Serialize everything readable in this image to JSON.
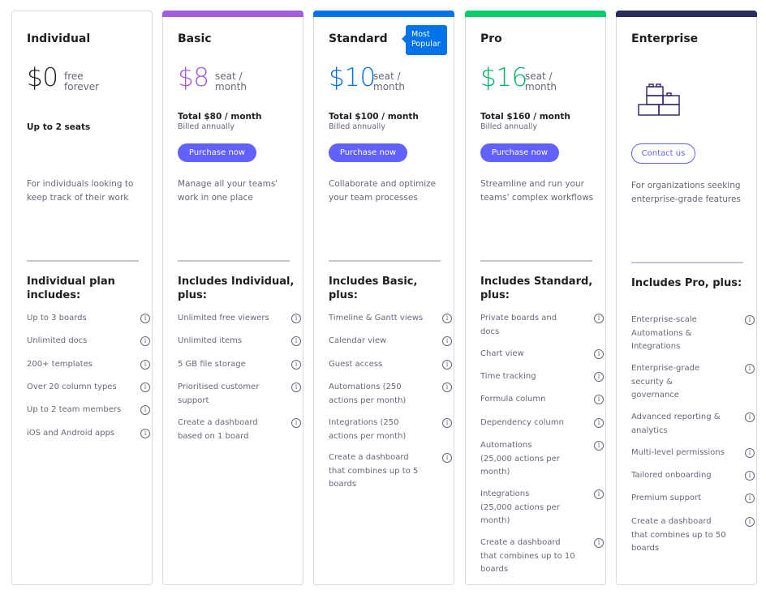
{
  "colors": {
    "basic": "#a25ddc",
    "standard": "#0073ea",
    "pro": "#00b36b",
    "enterprise": "#2b2c5e",
    "button": "#6161ff"
  },
  "plans": [
    {
      "name": "Individual",
      "price": "$0",
      "unit_line1": "free",
      "unit_line2": "forever",
      "seats": "Up to 2 seats",
      "description": "For individuals looking to keep track of their work",
      "includes": "Individual plan includes:",
      "features": [
        "Up to 3 boards",
        "Unlimited docs",
        "200+ templates",
        "Over 20 column types",
        "Up to 2 team members",
        "iOS and Android apps"
      ]
    },
    {
      "name": "Basic",
      "price": "$8",
      "unit_line1": "seat /",
      "unit_line2": "month",
      "total": "Total $80 / month",
      "billed": "Billed annually",
      "button": "Purchase now",
      "description": "Manage all your teams' work in one place",
      "includes": "Includes Individual, plus:",
      "features": [
        "Unlimited free viewers",
        "Unlimited items",
        "5 GB file storage",
        "Prioritised customer support",
        "Create a dashboard based on 1 board"
      ]
    },
    {
      "name": "Standard",
      "badge_line1": "Most",
      "badge_line2": "Popular",
      "price": "$10",
      "unit_line1": "seat /",
      "unit_line2": "month",
      "total": "Total $100 / month",
      "billed": "Billed annually",
      "button": "Purchase now",
      "description": "Collaborate and optimize your team processes",
      "includes": "Includes Basic, plus:",
      "features": [
        "Timeline & Gantt views",
        "Calendar view",
        "Guest access",
        "Automations (250 actions per month)",
        "Integrations (250 actions per month)",
        "Create a dashboard that combines up to 5 boards"
      ]
    },
    {
      "name": "Pro",
      "price": "$16",
      "unit_line1": "seat /",
      "unit_line2": "month",
      "total": "Total $160 / month",
      "billed": "Billed annually",
      "button": "Purchase now",
      "description": "Streamline and run your teams' complex workflows",
      "includes": "Includes Standard, plus:",
      "features": [
        "Private boards and docs",
        "Chart view",
        "Time tracking",
        "Formula column",
        "Dependency column",
        "Automations (25,000 actions per month)",
        "Integrations (25,000 actions per month)",
        "Create a dashboard that combines up to 10 boards"
      ]
    },
    {
      "name": "Enterprise",
      "icon": "building-blocks-icon",
      "button": "Contact us",
      "description": "For organizations seeking enterprise-grade features",
      "includes": "Includes Pro, plus:",
      "features": [
        "Enterprise-scale Automations & Integrations",
        "Enterprise-grade security & governance",
        "Advanced reporting & analytics",
        "Multi-level permissions",
        "Tailored onboarding",
        "Premium support",
        "Create a dashboard that combines up to 50 boards"
      ]
    }
  ]
}
